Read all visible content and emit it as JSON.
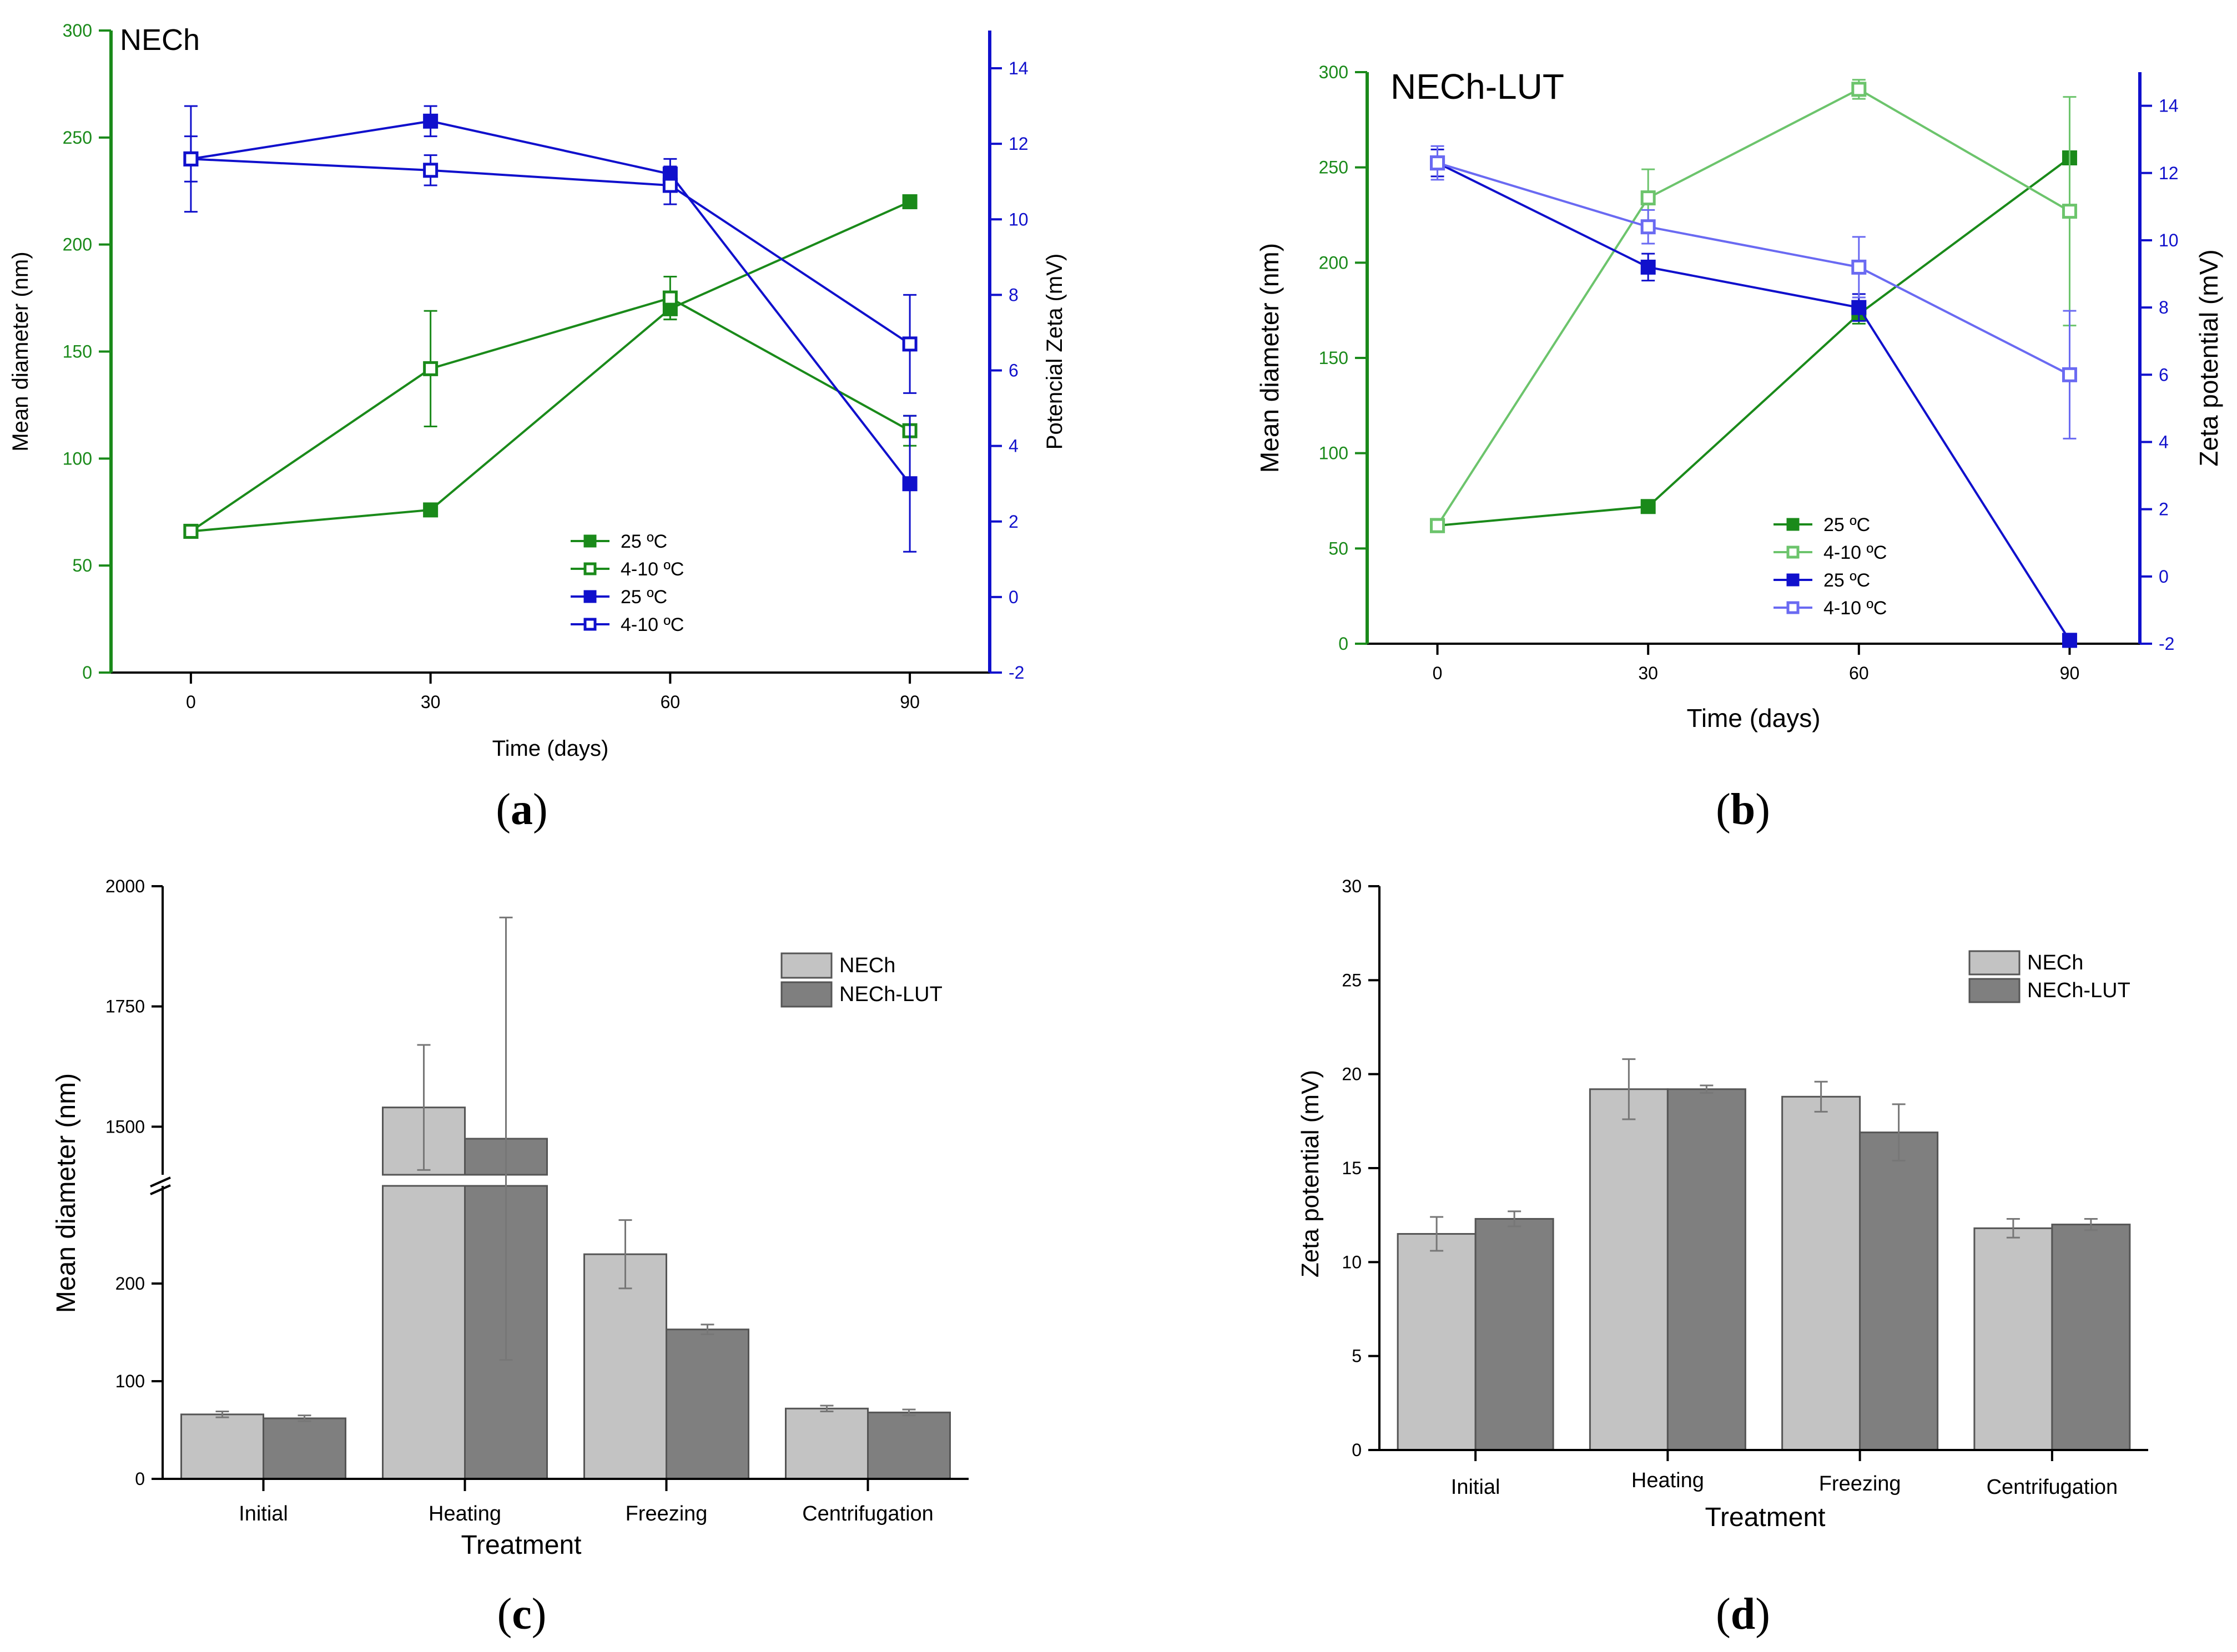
{
  "colors": {
    "green": "#1a8a1a",
    "green_light": "#6cc46c",
    "blue": "#1010cc",
    "blue_light": "#6a6af2",
    "bar_light": "#c3c3c3",
    "bar_dark": "#7f7f7f",
    "axis": "#000000"
  },
  "chart_data": [
    {
      "id": "a",
      "type": "line",
      "panel_label": [
        "(",
        "a",
        ")"
      ],
      "title": "NECh",
      "xlabel": "Time (days)",
      "ylabel": "Mean diameter (nm)",
      "y2label": "Potencial Zeta (mV)",
      "x": [
        0,
        30,
        60,
        90
      ],
      "xticks": [
        "0",
        "30",
        "60",
        "90"
      ],
      "xlim": [
        -10,
        100
      ],
      "ylim": [
        0,
        300
      ],
      "yticks": [
        "0",
        "50",
        "100",
        "150",
        "200",
        "250",
        "300"
      ],
      "y2lim": [
        -2,
        15
      ],
      "y2ticks": [
        "-2",
        "0",
        "2",
        "4",
        "6",
        "8",
        "10",
        "12",
        "14"
      ],
      "legend": [
        "25 ºC",
        "4-10 ºC",
        "25 ºC",
        "4-10 ºC"
      ],
      "series": [
        {
          "name": "25 ºC",
          "axis": "left",
          "color": "#1a8a1a",
          "filled": true,
          "values": [
            66,
            76,
            170,
            220
          ],
          "err": [
            2,
            2,
            5,
            0
          ]
        },
        {
          "name": "4-10 ºC",
          "axis": "left",
          "color": "#1a8a1a",
          "filled": false,
          "values": [
            66,
            142,
            175,
            113
          ],
          "err": [
            2,
            27,
            10,
            7
          ]
        },
        {
          "name": "25 ºC",
          "axis": "right",
          "color": "#1010cc",
          "filled": true,
          "values": [
            11.6,
            12.6,
            11.2,
            3.0
          ],
          "err": [
            0.6,
            0.4,
            0.4,
            1.8
          ]
        },
        {
          "name": "4-10 ºC",
          "axis": "right",
          "color": "#1010cc",
          "filled": false,
          "values": [
            11.6,
            11.3,
            10.9,
            6.7
          ],
          "err": [
            1.4,
            0.4,
            0.5,
            1.3
          ]
        }
      ]
    },
    {
      "id": "b",
      "type": "line",
      "panel_label": [
        "(",
        "b",
        ")"
      ],
      "title": "NECh-LUT",
      "xlabel": "Time (days)",
      "ylabel": "Mean diameter (nm)",
      "y2label": "Zeta potential (mV)",
      "x": [
        0,
        30,
        60,
        90
      ],
      "xticks": [
        "0",
        "30",
        "60",
        "90"
      ],
      "xlim": [
        -10,
        100
      ],
      "ylim": [
        0,
        300
      ],
      "yticks": [
        "0",
        "50",
        "100",
        "150",
        "200",
        "250",
        "300"
      ],
      "y2lim": [
        -2,
        15
      ],
      "y2ticks": [
        "-2",
        "0",
        "2",
        "4",
        "6",
        "8",
        "10",
        "12",
        "14"
      ],
      "legend": [
        "25 ºC",
        "4-10 ºC",
        "25 ºC",
        "4-10 ºC"
      ],
      "series": [
        {
          "name": "25 ºC",
          "axis": "left",
          "color": "#1a8a1a",
          "filled": true,
          "values": [
            62,
            72,
            173,
            255
          ],
          "err": [
            2,
            2,
            5,
            0
          ]
        },
        {
          "name": "4-10 ºC",
          "axis": "left",
          "color": "#6cc46c",
          "filled": false,
          "values": [
            62,
            234,
            291,
            227
          ],
          "err": [
            2,
            15,
            5,
            60
          ]
        },
        {
          "name": "25 ºC",
          "axis": "right",
          "color": "#1010cc",
          "filled": true,
          "values": [
            12.3,
            9.2,
            8.0,
            -1.9
          ],
          "err": [
            0.4,
            0.4,
            0.4,
            0.2
          ]
        },
        {
          "name": "4-10 ºC",
          "axis": "right",
          "color": "#6a6af2",
          "filled": false,
          "values": [
            12.3,
            10.4,
            9.2,
            6.0
          ],
          "err": [
            0.5,
            0.5,
            0.9,
            1.9
          ]
        }
      ]
    },
    {
      "id": "c",
      "type": "bar",
      "panel_label": [
        "(",
        "c",
        ")"
      ],
      "title": "",
      "xlabel": "Treatment",
      "ylabel": "Mean diameter (nm)",
      "categories": [
        "Initial",
        "Heating",
        "Freezing",
        "Centrifugation"
      ],
      "broken_axis": {
        "lower": [
          0,
          300
        ],
        "upper": [
          1400,
          2000
        ]
      },
      "yticks_lower": [
        "0",
        "100",
        "200"
      ],
      "yticks_upper": [
        "1500",
        "1750",
        "2000"
      ],
      "legend": [
        "NECh",
        "NECh-LUT"
      ],
      "series": [
        {
          "name": "NECh",
          "values": [
            66,
            1540,
            230,
            72
          ],
          "err": [
            3,
            130,
            35,
            3
          ]
        },
        {
          "name": "NECh-LUT",
          "values": [
            62,
            1475,
            153,
            68
          ],
          "err": [
            3,
            460,
            5,
            3
          ]
        }
      ]
    },
    {
      "id": "d",
      "type": "bar",
      "panel_label": [
        "(",
        "d",
        ")"
      ],
      "title": "",
      "xlabel": "Treatment",
      "ylabel": "Zeta potential (mV)",
      "categories": [
        "Initial",
        "Heating",
        "Freezing",
        "Centrifugation"
      ],
      "ylim": [
        0,
        30
      ],
      "yticks": [
        "0",
        "5",
        "10",
        "15",
        "20",
        "25",
        "30"
      ],
      "legend": [
        "NECh",
        "NECh-LUT"
      ],
      "series": [
        {
          "name": "NECh",
          "values": [
            11.5,
            19.2,
            18.8,
            11.8
          ],
          "err": [
            0.9,
            1.6,
            0.8,
            0.5
          ]
        },
        {
          "name": "NECh-LUT",
          "values": [
            12.3,
            19.2,
            16.9,
            12.0
          ],
          "err": [
            0.4,
            0.2,
            1.5,
            0.3
          ]
        }
      ]
    }
  ]
}
